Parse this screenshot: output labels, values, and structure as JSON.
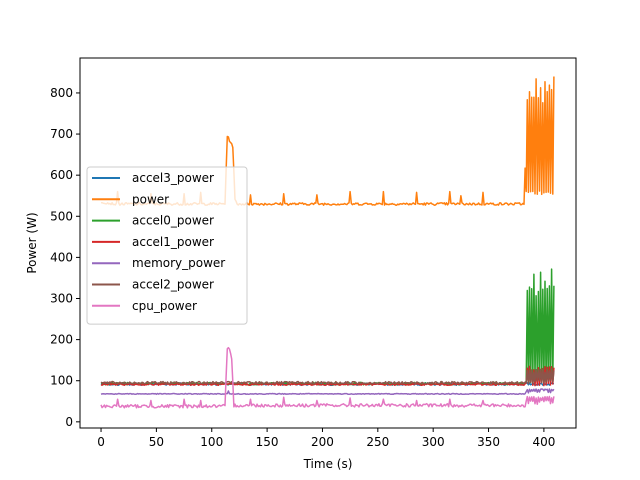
{
  "chart_data": {
    "type": "line",
    "title": "",
    "xlabel": "Time (s)",
    "ylabel": "Power (W)",
    "xlim": [
      -19,
      429
    ],
    "ylim": [
      -15,
      885
    ],
    "xticks": [
      0,
      50,
      100,
      150,
      200,
      250,
      300,
      350,
      400
    ],
    "yticks": [
      0,
      100,
      200,
      300,
      400,
      500,
      600,
      700,
      800
    ],
    "legend_position": "center-left",
    "grid": false,
    "series": [
      {
        "name": "accel3_power",
        "color": "#1f77b4",
        "base": 92,
        "noise": 3,
        "points": [
          [
            0,
            92
          ],
          [
            409,
            92
          ]
        ],
        "spikes": []
      },
      {
        "name": "power",
        "color": "#ff7f0e",
        "base": 530,
        "noise": 3,
        "points": [
          [
            0,
            535
          ],
          [
            12,
            530
          ],
          [
            112,
            530
          ],
          [
            114,
            695
          ],
          [
            117,
            680
          ],
          [
            119,
            670
          ],
          [
            121,
            540
          ],
          [
            123,
            530
          ],
          [
            382,
            530
          ],
          [
            385,
            800
          ],
          [
            388,
            560
          ],
          [
            391,
            840
          ],
          [
            394,
            555
          ],
          [
            397,
            835
          ],
          [
            400,
            560
          ],
          [
            403,
            840
          ],
          [
            406,
            555
          ],
          [
            409,
            835
          ]
        ],
        "spikes": [
          [
            15,
            560
          ],
          [
            45,
            555
          ],
          [
            75,
            555
          ],
          [
            90,
            558
          ],
          [
            135,
            552
          ],
          [
            165,
            555
          ],
          [
            195,
            552
          ],
          [
            225,
            560
          ],
          [
            255,
            560
          ],
          [
            285,
            558
          ],
          [
            315,
            560
          ],
          [
            325,
            550
          ],
          [
            345,
            558
          ]
        ],
        "burst": {
          "start": 384,
          "end": 409,
          "low": 552,
          "high": 840
        }
      },
      {
        "name": "accel0_power",
        "color": "#2ca02c",
        "base": 93,
        "noise": 3,
        "points": [
          [
            0,
            93
          ],
          [
            383,
            93
          ],
          [
            386,
            290
          ],
          [
            392,
            370
          ],
          [
            397,
            355
          ],
          [
            403,
            300
          ],
          [
            409,
            360
          ]
        ],
        "spikes": [],
        "burst": {
          "start": 384,
          "end": 409,
          "low": 95,
          "high": 375
        }
      },
      {
        "name": "accel1_power",
        "color": "#d62728",
        "base": 91,
        "noise": 2,
        "points": [
          [
            0,
            91
          ],
          [
            409,
            91
          ]
        ],
        "spikes": [],
        "burst": {
          "start": 384,
          "end": 409,
          "low": 88,
          "high": 135
        }
      },
      {
        "name": "memory_power",
        "color": "#9467bd",
        "base": 68,
        "noise": 1,
        "points": [
          [
            0,
            68
          ],
          [
            409,
            68
          ]
        ],
        "spikes": [
          [
            115,
            75
          ]
        ],
        "burst": {
          "start": 384,
          "end": 409,
          "low": 70,
          "high": 80
        }
      },
      {
        "name": "accel2_power",
        "color": "#8c564b",
        "base": 95,
        "noise": 3,
        "points": [
          [
            0,
            95
          ],
          [
            409,
            95
          ]
        ],
        "spikes": [],
        "burst": {
          "start": 384,
          "end": 409,
          "low": 92,
          "high": 130
        }
      },
      {
        "name": "cpu_power",
        "color": "#e377c2",
        "base": 38,
        "noise": 4,
        "points": [
          [
            0,
            38
          ],
          [
            112,
            38
          ],
          [
            114,
            175
          ],
          [
            116,
            178
          ],
          [
            118,
            150
          ],
          [
            120,
            40
          ],
          [
            383,
            40
          ],
          [
            386,
            60
          ],
          [
            409,
            50
          ]
        ],
        "spikes": [
          [
            15,
            55
          ],
          [
            45,
            52
          ],
          [
            75,
            55
          ],
          [
            90,
            52
          ],
          [
            135,
            55
          ],
          [
            165,
            60
          ],
          [
            195,
            52
          ],
          [
            225,
            58
          ],
          [
            255,
            55
          ],
          [
            285,
            52
          ],
          [
            315,
            55
          ],
          [
            345,
            52
          ]
        ],
        "burst": {
          "start": 384,
          "end": 409,
          "low": 42,
          "high": 62
        }
      }
    ]
  }
}
